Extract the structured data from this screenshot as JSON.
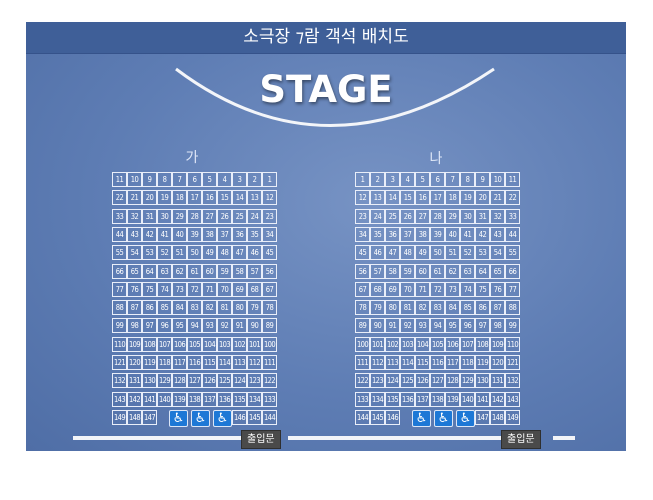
{
  "header": {
    "title": "소극장 ⁊람 객석 배치도"
  },
  "stage": {
    "label": "STAGE"
  },
  "sections": [
    {
      "id": "ga",
      "label": "가",
      "rows": [
        [
          "11",
          "10",
          "9",
          "8",
          "7",
          "6",
          "5",
          "4",
          "3",
          "2",
          "1"
        ],
        [
          "22",
          "21",
          "20",
          "19",
          "18",
          "17",
          "16",
          "15",
          "14",
          "13",
          "12"
        ],
        [
          "33",
          "32",
          "31",
          "30",
          "29",
          "28",
          "27",
          "26",
          "25",
          "24",
          "23"
        ],
        [
          "44",
          "43",
          "42",
          "41",
          "40",
          "39",
          "38",
          "37",
          "36",
          "35",
          "34"
        ],
        [
          "55",
          "54",
          "53",
          "52",
          "51",
          "50",
          "49",
          "48",
          "47",
          "46",
          "45"
        ],
        [
          "66",
          "65",
          "64",
          "63",
          "62",
          "61",
          "60",
          "59",
          "58",
          "57",
          "56"
        ],
        [
          "77",
          "76",
          "75",
          "74",
          "73",
          "72",
          "71",
          "70",
          "69",
          "68",
          "67"
        ],
        [
          "88",
          "87",
          "86",
          "85",
          "84",
          "83",
          "82",
          "81",
          "80",
          "79",
          "78"
        ],
        [
          "99",
          "98",
          "97",
          "96",
          "95",
          "94",
          "93",
          "92",
          "91",
          "90",
          "89"
        ],
        [
          "110",
          "109",
          "108",
          "107",
          "106",
          "105",
          "104",
          "103",
          "102",
          "101",
          "100"
        ],
        [
          "121",
          "120",
          "119",
          "118",
          "117",
          "116",
          "115",
          "114",
          "113",
          "112",
          "111"
        ],
        [
          "132",
          "131",
          "130",
          "129",
          "128",
          "127",
          "126",
          "125",
          "124",
          "123",
          "122"
        ],
        [
          "143",
          "142",
          "141",
          "140",
          "139",
          "138",
          "137",
          "136",
          "135",
          "134",
          "133"
        ]
      ],
      "last_row_left": [
        "149",
        "148",
        "147"
      ],
      "last_row_right": [
        "146",
        "145",
        "144"
      ]
    },
    {
      "id": "na",
      "label": "나",
      "rows": [
        [
          "1",
          "2",
          "3",
          "4",
          "5",
          "6",
          "7",
          "8",
          "9",
          "10",
          "11"
        ],
        [
          "12",
          "13",
          "14",
          "15",
          "16",
          "17",
          "18",
          "19",
          "20",
          "21",
          "22"
        ],
        [
          "23",
          "24",
          "25",
          "26",
          "27",
          "28",
          "29",
          "30",
          "31",
          "32",
          "33"
        ],
        [
          "34",
          "35",
          "36",
          "37",
          "38",
          "39",
          "40",
          "41",
          "42",
          "43",
          "44"
        ],
        [
          "45",
          "46",
          "47",
          "48",
          "49",
          "50",
          "51",
          "52",
          "53",
          "54",
          "55"
        ],
        [
          "56",
          "57",
          "58",
          "59",
          "60",
          "61",
          "62",
          "63",
          "64",
          "65",
          "66"
        ],
        [
          "67",
          "68",
          "69",
          "70",
          "71",
          "72",
          "73",
          "74",
          "75",
          "76",
          "77"
        ],
        [
          "78",
          "79",
          "80",
          "81",
          "82",
          "83",
          "84",
          "85",
          "86",
          "87",
          "88"
        ],
        [
          "89",
          "90",
          "91",
          "92",
          "93",
          "94",
          "95",
          "96",
          "97",
          "98",
          "99"
        ],
        [
          "100",
          "101",
          "102",
          "103",
          "104",
          "105",
          "106",
          "107",
          "108",
          "109",
          "110"
        ],
        [
          "111",
          "112",
          "113",
          "114",
          "115",
          "116",
          "117",
          "118",
          "119",
          "120",
          "121"
        ],
        [
          "122",
          "123",
          "124",
          "125",
          "126",
          "127",
          "128",
          "129",
          "130",
          "131",
          "132"
        ],
        [
          "133",
          "134",
          "135",
          "136",
          "137",
          "138",
          "139",
          "140",
          "141",
          "142",
          "143"
        ]
      ],
      "last_row_left": [
        "144",
        "145",
        "146"
      ],
      "last_row_right": [
        "147",
        "148",
        "149"
      ]
    }
  ],
  "wheelchair": {
    "icon": "wheelchair-icon",
    "glyph": "♿",
    "count_per_section": 3
  },
  "exits": [
    {
      "label": "출입문"
    },
    {
      "label": "출입문"
    }
  ],
  "colors": {
    "panel": "#5e7db4",
    "title_bar": "#3f5f98",
    "wheelchair": "#1d78d6",
    "exit": "#4a4a4a"
  }
}
